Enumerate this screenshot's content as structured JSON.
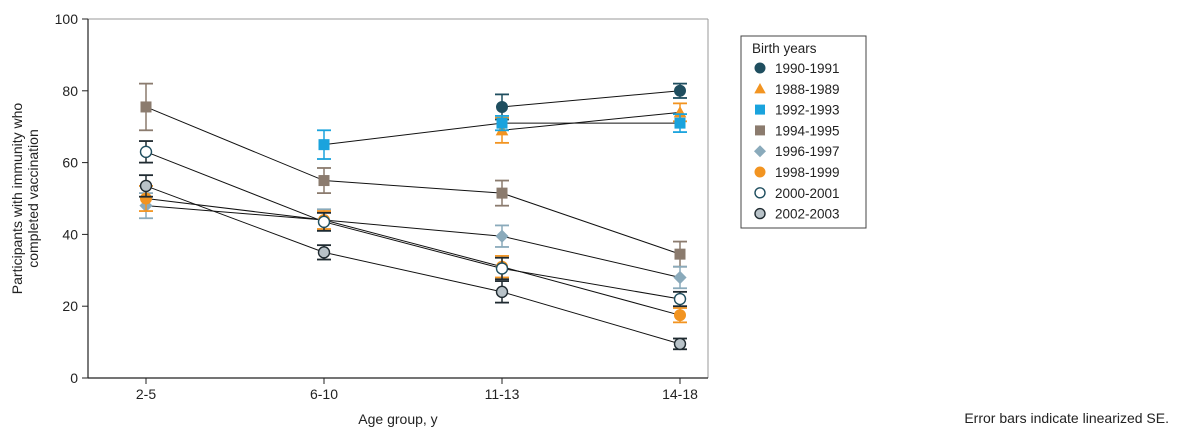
{
  "chart_data": {
    "type": "line",
    "title": "",
    "xlabel": "Age group, y",
    "ylabel_lines": [
      "Participants with immunity who",
      "completed vaccination"
    ],
    "ylim": [
      0,
      100
    ],
    "yticks": [
      0,
      20,
      40,
      60,
      80,
      100
    ],
    "categories": [
      "2-5",
      "6-10",
      "11-13",
      "14-18"
    ],
    "grid": false,
    "legend_title": "Birth years",
    "legend_position": "right",
    "note": "Error bars indicate linearized SE.",
    "series": [
      {
        "name": "1990-1991",
        "marker": "circle",
        "color": "#1f4e5f",
        "values": [
          null,
          null,
          75.5,
          80
        ],
        "se": [
          null,
          null,
          3.5,
          2
        ]
      },
      {
        "name": "1988-1989",
        "marker": "triangle",
        "color": "#f29421",
        "values": [
          null,
          null,
          69,
          74
        ],
        "se": [
          null,
          null,
          3.5,
          2.5
        ]
      },
      {
        "name": "1992-1993",
        "marker": "square",
        "color": "#1aa3dd",
        "values": [
          null,
          65,
          71,
          71
        ],
        "se": [
          null,
          4,
          2,
          2.5
        ]
      },
      {
        "name": "1994-1995",
        "marker": "square",
        "color": "#8b7b6e",
        "values": [
          75.5,
          55,
          51.5,
          34.5
        ],
        "se": [
          6.5,
          3.5,
          3.5,
          3.5
        ]
      },
      {
        "name": "1996-1997",
        "marker": "diamond",
        "color": "#8aaabb",
        "values": [
          48,
          44,
          39.5,
          28
        ],
        "se": [
          3.5,
          3,
          3,
          3
        ]
      },
      {
        "name": "1998-1999",
        "marker": "circle",
        "color": "#f29421",
        "values": [
          50,
          44,
          31,
          17.5
        ],
        "se": [
          3.5,
          2.5,
          3,
          2
        ]
      },
      {
        "name": "2000-2001",
        "marker": "circle-open",
        "color": "#1f4e5f",
        "values": [
          63,
          43.5,
          30.5,
          22
        ],
        "se": [
          3,
          2.5,
          3,
          2
        ]
      },
      {
        "name": "2002-2003",
        "marker": "circle-gray",
        "color": "#b8c2c8",
        "values": [
          53.5,
          35,
          24,
          9.5
        ],
        "se": [
          3,
          2,
          3,
          1.5
        ]
      }
    ]
  }
}
